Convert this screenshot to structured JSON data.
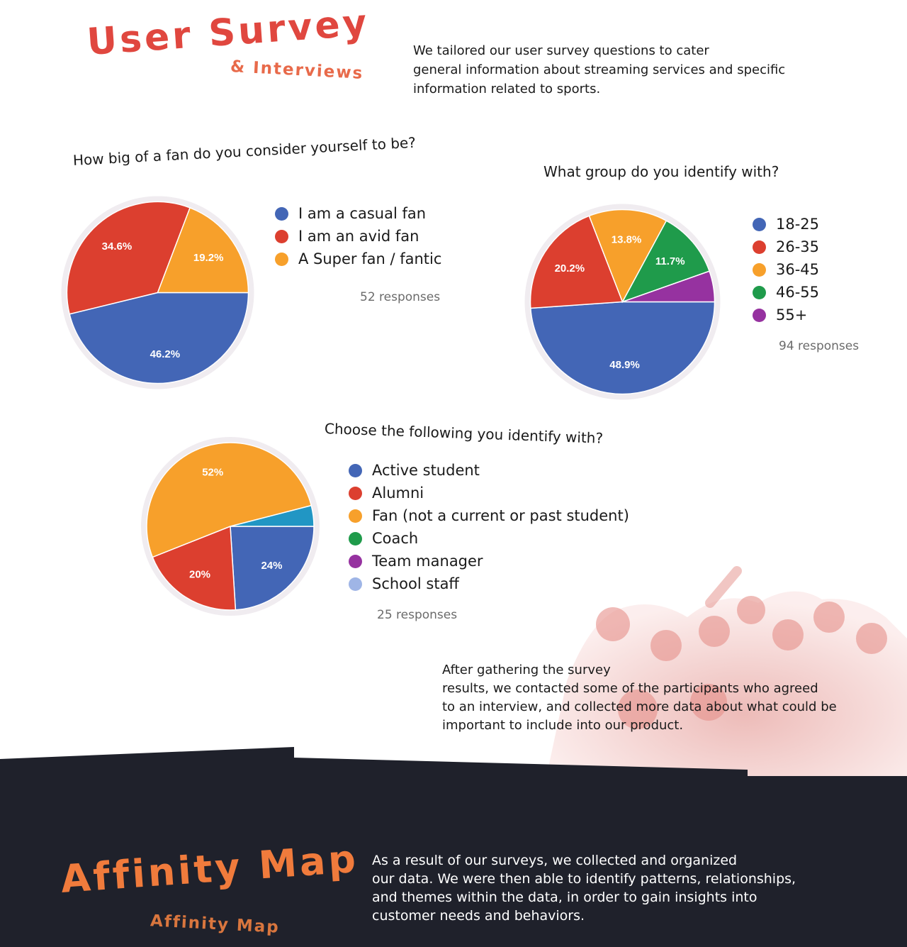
{
  "header": {
    "title": "User Survey",
    "subtitle": "& Interviews",
    "intro_lines": [
      "We tailored our user survey questions to cater",
      "general information about streaming services and specific",
      "information related to sports."
    ]
  },
  "chart_data": [
    {
      "type": "pie",
      "title": "How big of a fan do you consider yourself to be?",
      "categories": [
        "I am a casual fan",
        "I am an avid fan",
        "A Super fan / fantic"
      ],
      "values": [
        46.2,
        34.6,
        19.2
      ],
      "labels": [
        "46.2%",
        "34.6%",
        "19.2%"
      ],
      "colors": [
        "#4366b6",
        "#dc3f2f",
        "#f7a02b"
      ],
      "responses": "52 responses",
      "legend": "right"
    },
    {
      "type": "pie",
      "title": "What group do you identify with?",
      "categories": [
        "18-25",
        "26-35",
        "36-45",
        "46-55",
        "55+"
      ],
      "values": [
        48.9,
        20.2,
        13.8,
        11.7,
        5.4
      ],
      "labels": [
        "48.9%",
        "20.2%",
        "13.8%",
        "11.7%",
        ""
      ],
      "colors": [
        "#4366b6",
        "#dc3f2f",
        "#f7a02b",
        "#1f9b4b",
        "#9632a0"
      ],
      "responses": "94 responses",
      "legend": "right"
    },
    {
      "type": "pie",
      "title": "Choose the following you identify with?",
      "categories": [
        "Active student",
        "Alumni",
        "Fan (not a current or past student)",
        "Coach",
        "Team manager",
        "School staff"
      ],
      "values": [
        24,
        20,
        52,
        0,
        0,
        4
      ],
      "labels": [
        "24%",
        "20%",
        "52%",
        "",
        "",
        ""
      ],
      "colors": [
        "#4366b6",
        "#dc3f2f",
        "#f7a02b",
        "#1f9b4b",
        "#9632a0",
        "#9fb5e6"
      ],
      "slice_colors": [
        "#4366b6",
        "#dc3f2f",
        "#f7a02b",
        "#1f9b4b",
        "#9632a0",
        "#2196c4"
      ],
      "responses": "25  responses",
      "legend": "right"
    }
  ],
  "after_lines": [
    "After gathering the survey",
    "results, we contacted some of the participants who agreed",
    "to an interview, and collected more data about what could be",
    "important to include into our product."
  ],
  "affinity": {
    "title": "Affinity Map",
    "subtitle": "Affinity Map",
    "lines": [
      "As a result of our surveys, we collected and organized",
      "our data. We were then able to identify patterns, relationships,",
      "and themes within the data, in order to gain insights into",
      "customer needs and behaviors."
    ]
  },
  "colors": {
    "dark_band": "#1f212b",
    "accent": "#e0473f",
    "orange": "#f07b3c"
  }
}
